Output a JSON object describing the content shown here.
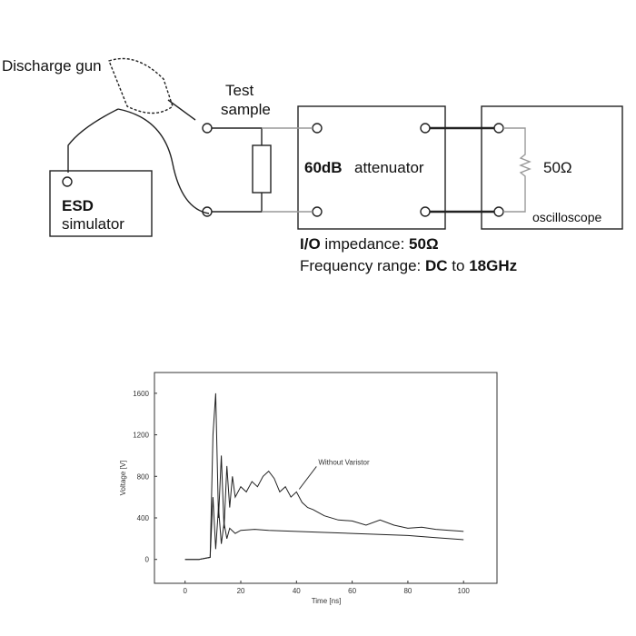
{
  "diagram": {
    "gun_label": "Discharge gun",
    "sample_label": [
      "Test",
      "sample"
    ],
    "simulator_label": [
      "ESD",
      "simulator"
    ],
    "attenuator_label": [
      "60dB",
      "attenuator"
    ],
    "resistor_label": "50Ω",
    "scope_label": "oscilloscope",
    "spec_lines": [
      [
        "I/O",
        "impedance:",
        "50Ω"
      ],
      [
        "Frequency range:",
        "DC",
        "to",
        "18GHz"
      ]
    ]
  },
  "chart_data": {
    "type": "line",
    "x_label": "Time [ns]",
    "y_label": "Voltage [V]",
    "xlim": [
      -11,
      112
    ],
    "ylim": [
      -230,
      1800
    ],
    "xticks": [
      0,
      20,
      40,
      60,
      80,
      100
    ],
    "yticks": [
      0,
      400,
      800,
      1200,
      1600
    ],
    "series": [
      {
        "name": "Without Varistor",
        "color": "#222",
        "x": [
          0,
          5,
          9,
          10,
          11,
          12,
          13,
          14,
          15,
          16,
          17,
          18,
          20,
          22,
          24,
          26,
          28,
          30,
          32,
          34,
          36,
          38,
          40,
          42,
          44,
          46,
          48,
          50,
          55,
          60,
          65,
          70,
          75,
          80,
          85,
          90,
          95,
          100
        ],
        "values": [
          0,
          0,
          20,
          1200,
          1600,
          400,
          1000,
          300,
          900,
          500,
          800,
          600,
          700,
          650,
          750,
          700,
          800,
          850,
          780,
          650,
          700,
          600,
          650,
          550,
          500,
          480,
          450,
          420,
          380,
          370,
          330,
          380,
          330,
          300,
          310,
          290,
          280,
          270
        ]
      },
      {
        "color": "#222",
        "x": [
          0,
          5,
          9,
          10,
          11,
          12,
          13,
          14,
          15,
          16,
          18,
          20,
          25,
          30,
          40,
          50,
          60,
          70,
          80,
          90,
          100
        ],
        "values": [
          0,
          0,
          20,
          600,
          100,
          500,
          150,
          350,
          200,
          300,
          250,
          280,
          290,
          280,
          270,
          260,
          250,
          240,
          230,
          210,
          190
        ]
      }
    ]
  }
}
